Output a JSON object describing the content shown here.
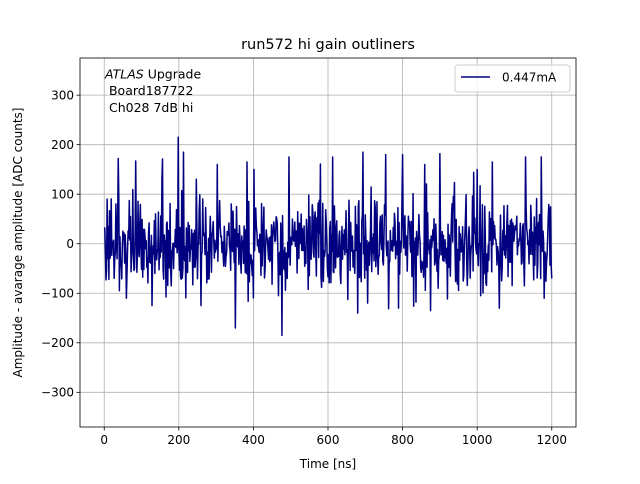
{
  "chart_data": {
    "type": "line",
    "title": "run572 hi gain outliners",
    "xlabel": "Time [ns]",
    "ylabel": "Amplitude - avarage amplitude [ADC counts]",
    "xlim": [
      -65,
      1265
    ],
    "ylim": [
      -370,
      375
    ],
    "xticks": [
      0,
      200,
      400,
      600,
      800,
      1000,
      1200
    ],
    "yticks": [
      -300,
      -200,
      -100,
      0,
      100,
      200,
      300
    ],
    "grid": true,
    "legend_position": "upper right",
    "annotation": {
      "line1_italic": "ATLAS",
      "line1_rest": " Upgrade",
      "line2": " Board187722",
      "line3": " Ch028 7dB hi"
    },
    "series": [
      {
        "name": "0.447mA",
        "color": "#000080",
        "x_start": 0,
        "x_step": 1.5625,
        "sample_count": 769,
        "x_end": 1200,
        "seed": 572,
        "noise_sigma": 48,
        "spikes": [
          {
            "x": 4,
            "y": -73
          },
          {
            "x": 8,
            "y": 90
          },
          {
            "x": 13,
            "y": -72
          },
          {
            "x": 37,
            "y": 172
          },
          {
            "x": 40,
            "y": -95
          },
          {
            "x": 60,
            "y": -110
          },
          {
            "x": 84,
            "y": 167
          },
          {
            "x": 128,
            "y": -125
          },
          {
            "x": 157,
            "y": 171
          },
          {
            "x": 180,
            "y": -85
          },
          {
            "x": 199,
            "y": 215
          },
          {
            "x": 213,
            "y": 185
          },
          {
            "x": 260,
            "y": -125
          },
          {
            "x": 303,
            "y": 160
          },
          {
            "x": 351,
            "y": -170
          },
          {
            "x": 383,
            "y": 165
          },
          {
            "x": 476,
            "y": -185
          },
          {
            "x": 496,
            "y": 175
          },
          {
            "x": 580,
            "y": 161
          },
          {
            "x": 613,
            "y": 175
          },
          {
            "x": 680,
            "y": -140
          },
          {
            "x": 693,
            "y": 185
          },
          {
            "x": 707,
            "y": -120
          },
          {
            "x": 754,
            "y": 180
          },
          {
            "x": 789,
            "y": -130
          },
          {
            "x": 800,
            "y": 180
          },
          {
            "x": 860,
            "y": 160
          },
          {
            "x": 875,
            "y": -135
          },
          {
            "x": 900,
            "y": 182
          },
          {
            "x": 1000,
            "y": 150
          },
          {
            "x": 1040,
            "y": 165
          },
          {
            "x": 1060,
            "y": -130
          },
          {
            "x": 1129,
            "y": 175
          },
          {
            "x": 1172,
            "y": 175
          },
          {
            "x": 1180,
            "y": -110
          },
          {
            "x": 1200,
            "y": -70
          }
        ]
      }
    ]
  }
}
